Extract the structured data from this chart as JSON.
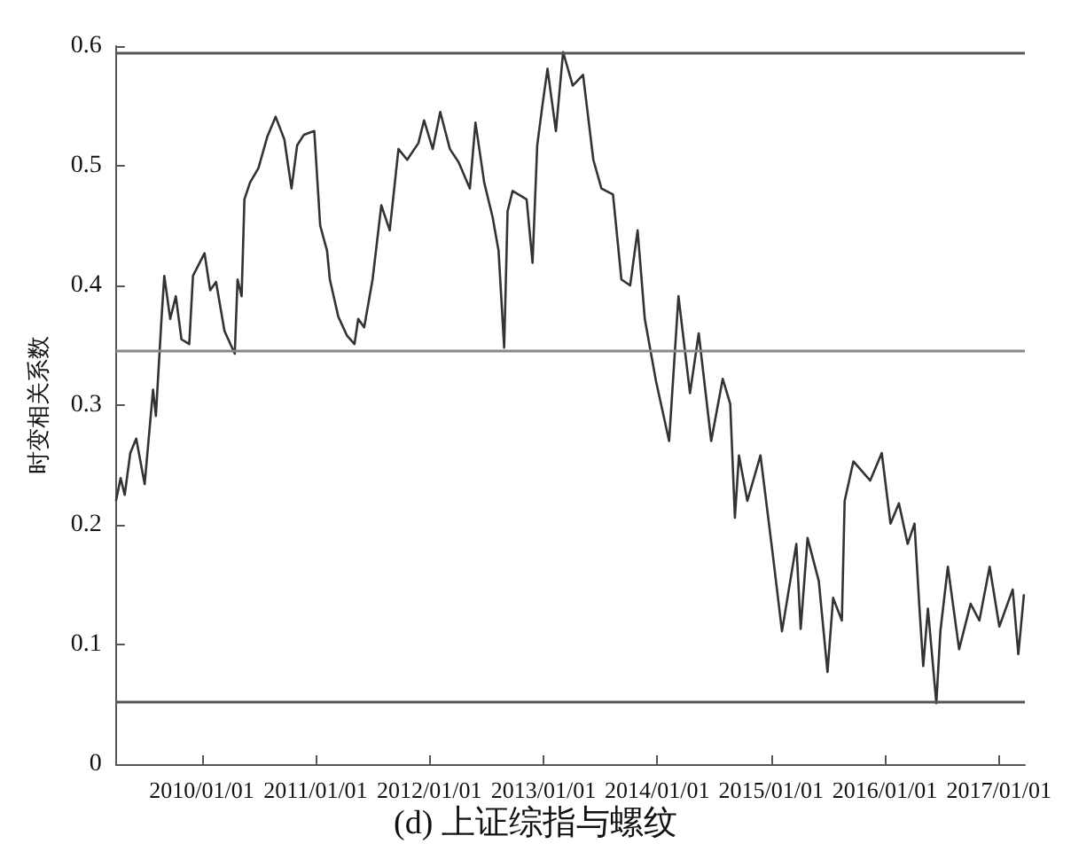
{
  "chart_data": {
    "type": "line",
    "title": "(d) 上证综指与螺纹",
    "ylabel": "时变相关系数",
    "xlim": [
      "2009-04-01",
      "2017-03-25"
    ],
    "xticks": [
      {
        "value": "2010-01-01",
        "label": "2010/01/01"
      },
      {
        "value": "2011-01-01",
        "label": "2011/01/01"
      },
      {
        "value": "2012-01-01",
        "label": "2012/01/01"
      },
      {
        "value": "2013-01-01",
        "label": "2013/01/01"
      },
      {
        "value": "2014-01-01",
        "label": "2014/01/01"
      },
      {
        "value": "2015-01-01",
        "label": "2015/01/01"
      },
      {
        "value": "2016-01-01",
        "label": "2016/01/01"
      },
      {
        "value": "2017-01-01",
        "label": "2017/01/01"
      }
    ],
    "ylim": [
      0,
      0.6
    ],
    "yticks": [
      0,
      0.1,
      0.2,
      0.3,
      0.4,
      0.5,
      0.6
    ],
    "grid": false,
    "marker": "none",
    "line_style": "solid",
    "x": [
      "2009-04-01",
      "2009-04-16",
      "2009-04-29",
      "2009-05-17",
      "2009-06-05",
      "2009-07-02",
      "2009-07-29",
      "2009-08-07",
      "2009-08-25",
      "2009-09-03",
      "2009-09-22",
      "2009-10-10",
      "2009-10-28",
      "2009-11-22",
      "2009-12-04",
      "2010-01-10",
      "2010-01-28",
      "2010-02-16",
      "2010-03-15",
      "2010-04-17",
      "2010-04-26",
      "2010-05-09",
      "2010-05-18",
      "2010-06-05",
      "2010-07-02",
      "2010-07-30",
      "2010-08-26",
      "2010-09-23",
      "2010-10-16",
      "2010-11-03",
      "2010-11-25",
      "2010-12-28",
      "2011-01-16",
      "2011-02-07",
      "2011-02-16",
      "2011-03-15",
      "2011-04-12",
      "2011-05-06",
      "2011-05-18",
      "2011-06-06",
      "2011-07-03",
      "2011-07-31",
      "2011-08-27",
      "2011-09-24",
      "2011-10-22",
      "2011-11-27",
      "2011-12-15",
      "2012-01-12",
      "2012-02-05",
      "2012-03-07",
      "2012-04-04",
      "2012-05-10",
      "2012-05-28",
      "2012-06-25",
      "2012-07-22",
      "2012-08-10",
      "2012-08-28",
      "2012-09-08",
      "2012-09-24",
      "2012-11-08",
      "2012-11-27",
      "2012-12-12",
      "2012-12-30",
      "2013-01-14",
      "2013-02-10",
      "2013-03-05",
      "2013-04-05",
      "2013-05-08",
      "2013-06-10",
      "2013-07-06",
      "2013-08-12",
      "2013-09-08",
      "2013-10-06",
      "2013-10-30",
      "2013-11-22",
      "2013-12-28",
      "2014-02-08",
      "2014-03-10",
      "2014-04-16",
      "2014-05-14",
      "2014-06-23",
      "2014-07-30",
      "2014-08-23",
      "2014-09-07",
      "2014-09-20",
      "2014-10-17",
      "2014-11-28",
      "2015-01-08",
      "2015-02-05",
      "2015-03-23",
      "2015-04-06",
      "2015-04-28",
      "2015-06-03",
      "2015-07-01",
      "2015-07-19",
      "2015-08-16",
      "2015-08-25",
      "2015-09-22",
      "2015-11-15",
      "2015-12-22",
      "2016-01-19",
      "2016-02-15",
      "2016-03-14",
      "2016-04-05",
      "2016-04-20",
      "2016-05-03",
      "2016-05-18",
      "2016-06-14",
      "2016-06-27",
      "2016-07-21",
      "2016-08-26",
      "2016-10-02",
      "2016-10-30",
      "2016-12-02",
      "2017-01-02",
      "2017-02-14",
      "2017-03-04",
      "2017-03-22"
    ],
    "series": [
      {
        "color": "#333333",
        "values": [
          0.22,
          0.239,
          0.225,
          0.26,
          0.272,
          0.234,
          0.313,
          0.291,
          0.372,
          0.408,
          0.372,
          0.391,
          0.355,
          0.351,
          0.408,
          0.427,
          0.396,
          0.403,
          0.362,
          0.343,
          0.405,
          0.391,
          0.472,
          0.486,
          0.498,
          0.524,
          0.541,
          0.522,
          0.481,
          0.517,
          0.526,
          0.529,
          0.45,
          0.429,
          0.405,
          0.374,
          0.358,
          0.351,
          0.372,
          0.365,
          0.405,
          0.467,
          0.446,
          0.514,
          0.505,
          0.519,
          0.538,
          0.514,
          0.545,
          0.514,
          0.503,
          0.481,
          0.536,
          0.486,
          0.457,
          0.429,
          0.348,
          0.462,
          0.479,
          0.472,
          0.419,
          0.517,
          0.553,
          0.581,
          0.529,
          0.595,
          0.567,
          0.576,
          0.505,
          0.481,
          0.476,
          0.405,
          0.4,
          0.446,
          0.372,
          0.32,
          0.27,
          0.391,
          0.31,
          0.36,
          0.27,
          0.322,
          0.301,
          0.206,
          0.258,
          0.22,
          0.258,
          0.172,
          0.111,
          0.184,
          0.113,
          0.189,
          0.153,
          0.077,
          0.139,
          0.12,
          0.22,
          0.253,
          0.237,
          0.26,
          0.201,
          0.218,
          0.184,
          0.201,
          0.134,
          0.082,
          0.13,
          0.051,
          0.111,
          0.165,
          0.096,
          0.134,
          0.12,
          0.165,
          0.115,
          0.146,
          0.092,
          0.142
        ]
      }
    ],
    "ref_lines": [
      {
        "axis": "y",
        "value": 0.595,
        "color": "#555555",
        "line_style": "solid"
      },
      {
        "axis": "y",
        "value": 0.345,
        "color": "#888888",
        "line_style": "solid"
      },
      {
        "axis": "y",
        "value": 0.052,
        "color": "#555555",
        "line_style": "solid"
      }
    ]
  }
}
